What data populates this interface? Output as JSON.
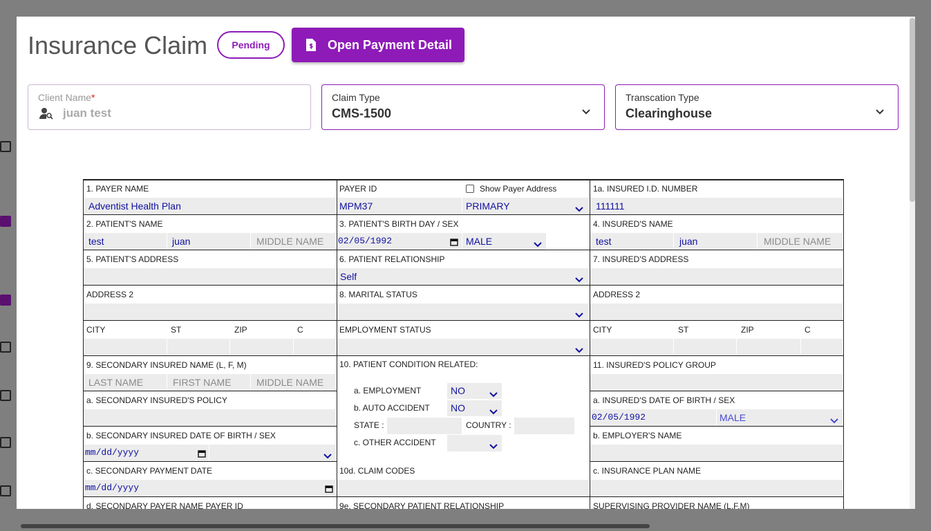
{
  "header": {
    "title": "Insurance Claim",
    "status": "Pending",
    "action": "Open Payment Detail"
  },
  "fields": [
    {
      "label": "Client Name",
      "required": "*",
      "value": "juan test"
    },
    {
      "label": "Claim Type",
      "value": "CMS-1500"
    },
    {
      "label": "Transcation Type",
      "value": "Clearinghouse"
    }
  ],
  "form": {
    "rows": [
      {
        "left": {
          "label": "1. PAYER NAME",
          "inputs": [
            "Adventist Health Plan"
          ]
        },
        "middle": {
          "label": "PAYER ID",
          "option": "Show Payer Address",
          "inputs": [
            "MPM37",
            "PRIMARY"
          ]
        },
        "right": {
          "label": "1a. INSURED I.D. NUMBER",
          "inputs": [
            "111111"
          ]
        }
      },
      {
        "left": {
          "label": "2. PATIENT'S NAME",
          "inputs": [
            "test",
            "juan",
            "MIDDLE NAME"
          ]
        },
        "middle": {
          "label": "3. PATIENT'S BIRTH DAY / SEX",
          "inputs": [
            "02/05/1992",
            "MALE"
          ]
        },
        "right": {
          "label": "4. INSURED'S NAME",
          "inputs": [
            "test",
            "juan",
            "MIDDLE NAME"
          ]
        }
      },
      {
        "left": {
          "label": "5. PATIENT'S ADDRESS"
        },
        "middle": {
          "label": "6. PATIENT RELATIONSHIP",
          "inputs": [
            "Self"
          ]
        },
        "right": {
          "label": "7. INSURED'S ADDRESS"
        }
      },
      {
        "left": {
          "label": "ADDRESS 2"
        },
        "middle": {
          "label": "8. MARITAL STATUS"
        },
        "right": {
          "label": "ADDRESS 2"
        }
      },
      {
        "left": {
          "labels": [
            "CITY",
            "ST",
            "ZIP",
            "C"
          ]
        },
        "middle": {
          "label": "EMPLOYMENT STATUS"
        },
        "right": {
          "labels": [
            "CITY",
            "ST",
            "ZIP",
            "C"
          ]
        }
      },
      {
        "left": {
          "label": "9. SECONDARY INSURED NAME (L, F, M)",
          "inputs": [
            "LAST NAME",
            "FIRST NAME",
            "MIDDLE NAME"
          ]
        },
        "right": {
          "label": "11. INSURED'S POLICY GROUP"
        }
      },
      {
        "left": {
          "label": "a. SECONDARY INSURED'S POLICY"
        },
        "right": {
          "label": "a. INSURED'S DATE OF BIRTH / SEX",
          "inputs": [
            "02/05/1992",
            "MALE"
          ]
        }
      },
      {
        "left": {
          "label": "b. SECONDARY INSURED DATE OF BIRTH / SEX",
          "inputs": [
            "mm/dd/yyyy"
          ]
        },
        "right": {
          "label": "b. EMPLOYER'S NAME"
        }
      },
      {
        "left": {
          "label": "c. SECONDARY PAYMENT DATE",
          "inputs": [
            "mm/dd/yyyy"
          ]
        },
        "middle": {
          "label": "10d. CLAIM CODES"
        },
        "right": {
          "label": "c. INSURANCE PLAN NAME"
        }
      },
      {
        "left": {
          "label": "d. SECONDARY PAYER NAME PAYER ID"
        },
        "middle": {
          "label": "9e. SECONDARY PATIENT RELATIONSHIP"
        },
        "right": {
          "label": "SUPERVISING PROVIDER NAME (L,F,M)"
        }
      }
    ],
    "condition": {
      "label": "10. PATIENT CONDITION RELATED:",
      "items": [
        {
          "label": "a. EMPLOYMENT",
          "value": "NO"
        },
        {
          "label": "b. AUTO ACCIDENT",
          "value": "NO"
        },
        {
          "label": "STATE :"
        },
        {
          "label": "COUNTRY :"
        },
        {
          "label": "c. OTHER ACCIDENT"
        }
      ]
    }
  }
}
